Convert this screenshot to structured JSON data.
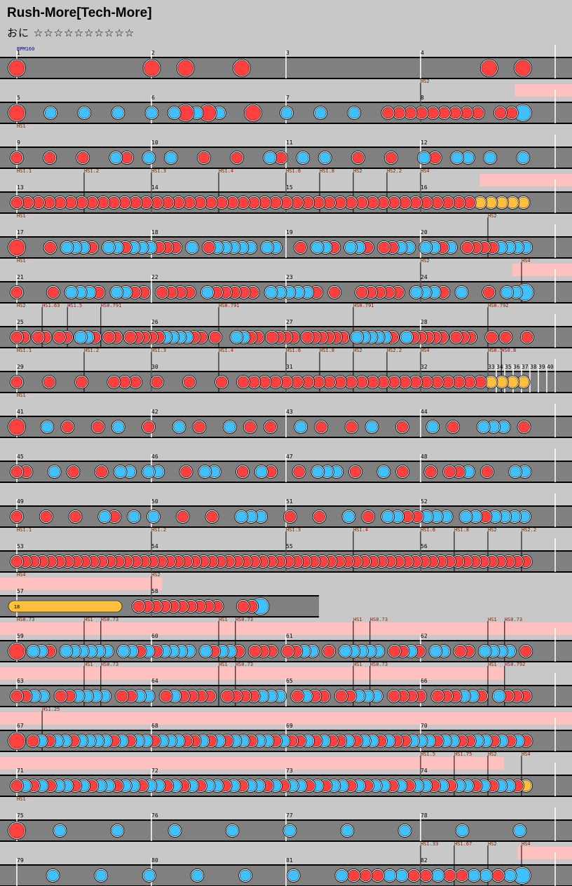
{
  "title": "Rush-More[Tech-More]",
  "subtitle": "おに ☆☆☆☆☆☆☆☆☆☆",
  "colors": {
    "background": "#c8c8c8",
    "lane": "#808080",
    "lane_border": "#000000",
    "don": "#ff4040",
    "ka": "#40c0ff",
    "roll": "#ffc040",
    "gogo_band": "#ffc0c0",
    "measure_text": "#000000",
    "event_text": "#cc0000",
    "bpm_text": "#0000cc"
  },
  "rows": [
    {
      "bpm": "BPM160",
      "m": [
        "1",
        "2",
        "3",
        "4"
      ],
      "ev": [],
      "notes": "D...........D..D....D.....................D..D"
    },
    {
      "m": [
        "5",
        "6",
        "7",
        "8"
      ],
      "ev": [
        {
          "t": "HS2",
          "p": 0.75
        }
      ],
      "gogo": [
        0.925,
        1
      ],
      "notes": "D..k..k..k..k.kDkDk..D..k..k..k..ddddddddd.ddK"
    },
    {
      "ev": [
        {
          "t": "HS1",
          "p": 0
        }
      ],
      "m": [
        "9",
        "10",
        "11",
        "12"
      ],
      "notes": "d..d..d..kd.k.k..d..d..kd.k.k..d..d..kd.kk.k..k"
    },
    {
      "ev": [
        {
          "t": "HS1.1",
          "p": 0
        },
        {
          "t": "HS1.2",
          "p": 0.125
        },
        {
          "t": "HS1.3",
          "p": 0.25
        },
        {
          "t": "HS1.4",
          "p": 0.375
        },
        {
          "t": "HS1.6",
          "p": 0.5
        },
        {
          "t": "HS1.8",
          "p": 0.5625
        },
        {
          "t": "HS2",
          "p": 0.625
        },
        {
          "t": "HS2.2",
          "p": 0.6875
        },
        {
          "t": "HS4",
          "p": 0.75
        }
      ],
      "m": [
        "13",
        "14",
        "15",
        "16"
      ],
      "gogo": [
        0.86,
        1
      ],
      "notes": "dddddddddddddddddddddddddddddddddddddddddddrrrrr"
    },
    {
      "ev": [
        {
          "t": "HS1",
          "p": 0
        },
        {
          "t": "HS2",
          "p": 0.875
        }
      ],
      "m": [
        "17",
        "18",
        "19",
        "20"
      ],
      "notes": "D...d.kkkd.kkdkkkddd.k.dkkkkk.kk..d.kkd.kkd.ddkk.kkdk.ddddkkkk"
    },
    {
      "ev": [
        {
          "t": "HS1",
          "p": 0
        },
        {
          "t": "HS2",
          "p": 0.75
        },
        {
          "t": "HS4",
          "p": 0.9375
        }
      ],
      "m": [
        "21",
        "22",
        "23",
        "24"
      ],
      "gogo": [
        0.92,
        1
      ],
      "notes": "d...d.kkkd.kkdd.dddd.kddddd.kkkkkd.d..ddddd.kkkd.k..d.kkK"
    },
    {
      "ev": [
        {
          "t": "HS2",
          "p": 0
        },
        {
          "t": "HS1.63",
          "p": 0.047
        },
        {
          "t": "HS1.5",
          "p": 0.094
        },
        {
          "t": "HS0.791",
          "p": 0.156
        },
        {
          "t": "HS0.791",
          "p": 0.375
        },
        {
          "t": "HS0.791",
          "p": 0.625
        },
        {
          "t": "HS0.792",
          "p": 0.875
        }
      ],
      "m": [
        "25",
        "26",
        "27",
        "28"
      ],
      "notes": "dd.dd.dd.kkd.dd.dddddkkkkdd.d..kkdd.dddd.dddddd.kkkkkd.kddddd.ddd..d.d..d"
    },
    {
      "ev": [
        {
          "t": "HS1.1",
          "p": 0
        },
        {
          "t": "HS1.2",
          "p": 0.125
        },
        {
          "t": "HS1.3",
          "p": 0.25
        },
        {
          "t": "HS1.4",
          "p": 0.375
        },
        {
          "t": "HS1.6",
          "p": 0.5
        },
        {
          "t": "HS1.8",
          "p": 0.5625
        },
        {
          "t": "HS2",
          "p": 0.625
        },
        {
          "t": "HS2.2",
          "p": 0.6875
        },
        {
          "t": "HS4",
          "p": 0.75
        },
        {
          "t": "HS0.5",
          "p": 0.875
        },
        {
          "t": "HS0.8",
          "p": 0.9
        }
      ],
      "m": [
        "29",
        "30",
        "31",
        "32",
        "33",
        "34",
        "35",
        "36",
        "37",
        "38",
        "39",
        "40"
      ],
      "notes": "d..d..d..ddd.d..d..d.dddddddddddddddddddddddrrrr"
    },
    {
      "ev": [
        {
          "t": "HS1",
          "p": 0
        }
      ],
      "m": [
        "41",
        "42",
        "43",
        "44"
      ],
      "notes": "D..k.d..d.k..d..k.d..k.d.d..k.d..d.k..d..k.d..kkk.d"
    },
    {
      "m": [
        "45",
        "46",
        "47",
        "48"
      ],
      "notes": "dd..k.d..d.kk.kk..d.kk..d.kd..d.kkk.d..k.d..d.ddk.d..kk"
    },
    {
      "m": [
        "49",
        "50",
        "51",
        "52"
      ],
      "notes": "d..d..d..kd.k.k..d..d..kkk..d..d..k.d.kkddkkk.kkdkkkk"
    },
    {
      "ev": [
        {
          "t": "HS1.1",
          "p": 0
        },
        {
          "t": "HS1.2",
          "p": 0.25
        },
        {
          "t": "HS1.3",
          "p": 0.5
        },
        {
          "t": "HS1.4",
          "p": 0.625
        },
        {
          "t": "HS1.6",
          "p": 0.75
        },
        {
          "t": "HS1.8",
          "p": 0.8125
        },
        {
          "t": "HS2",
          "p": 0.875
        },
        {
          "t": "HS2.2",
          "p": 0.9375
        }
      ],
      "m": [
        "53",
        "54",
        "55",
        "56"
      ],
      "notes": "ddddddddddddddddddddddddddddddddddddddddddddddddddddddddddddd"
    },
    {
      "ev": [
        {
          "t": "HS4",
          "p": 0
        },
        {
          "t": "HS2",
          "p": 0.25
        }
      ],
      "m": [
        "57",
        "58"
      ],
      "short": true,
      "gogo": [
        0,
        0.27
      ],
      "roll": "18",
      "notes": "r.............dddddddddd..ddK"
    },
    {
      "ev": [
        {
          "t": "HS0.73",
          "p": 0
        },
        {
          "t": "HS1",
          "p": 0.125
        },
        {
          "t": "HS0.73",
          "p": 0.156
        },
        {
          "t": "HS1",
          "p": 0.375
        },
        {
          "t": "HS0.73",
          "p": 0.406
        },
        {
          "t": "HS1",
          "p": 0.625
        },
        {
          "t": "HS0.73",
          "p": 0.656
        },
        {
          "t": "HS1",
          "p": 0.875
        },
        {
          "t": "HS0.73",
          "p": 0.906
        }
      ],
      "m": [
        "59",
        "60",
        "61",
        "62"
      ],
      "gogo": [
        0,
        1
      ],
      "notes": "D.kkd.kkkkkk.kkdkdkkkk.kdkkd.ddd.ddkk.d.kkkkk.ddkd.kk.dd.kkkk.d"
    },
    {
      "ev": [
        {
          "t": "HS1",
          "p": 0.125
        },
        {
          "t": "HS0.73",
          "p": 0.156
        },
        {
          "t": "HS1",
          "p": 0.375
        },
        {
          "t": "HS0.73",
          "p": 0.406
        },
        {
          "t": "HS1",
          "p": 0.625
        },
        {
          "t": "HS0.73",
          "p": 0.656
        },
        {
          "t": "HS1",
          "p": 0.875
        },
        {
          "t": "HS0.792",
          "p": 0.906
        }
      ],
      "m": [
        "63",
        "64",
        "65",
        "66"
      ],
      "gogo": [
        0,
        0.905
      ],
      "notes": "ddkk.ddkkkk.ddkk.dkdddd.ddddkkk.dkdd.ddkkk.dddd.dddkkd.kddd"
    },
    {
      "ev": [
        {
          "t": "HS1.25",
          "p": 0.047
        }
      ],
      "m": [
        "67",
        "68",
        "69",
        "70"
      ],
      "gogo": [
        0,
        1
      ],
      "notes": "D.dkdkkdkkkkdkdkkdkkkddkdkdkkdkkdkddkdkddkdkkdkddkkkdkkddkkdkdkd"
    },
    {
      "ev": [
        {
          "t": "HS1.5",
          "p": 0.75
        },
        {
          "t": "HS1.75",
          "p": 0.8125
        },
        {
          "t": "HS2",
          "p": 0.875
        },
        {
          "t": "HS4",
          "p": 0.9375
        }
      ],
      "m": [
        "71",
        "72",
        "73",
        "74"
      ],
      "gogo": [
        0,
        0.905
      ],
      "notes": "dkdkdkkdkdkkdkkdkkdkdkdkkdkdkkdkdkkdkdkkdkdkkdkdkkdkdkkdkdkkdr"
    },
    {
      "ev": [
        {
          "t": "HS1",
          "p": 0
        }
      ],
      "m": [
        "75",
        "76",
        "77",
        "78"
      ],
      "notes": "D..k...k...k...k...k...k...k...k...k"
    },
    {
      "ev": [
        {
          "t": "HS1.33",
          "p": 0.75
        },
        {
          "t": "HS1.67",
          "p": 0.8125
        },
        {
          "t": "HS2",
          "p": 0.875
        },
        {
          "t": "HS4",
          "p": 0.9375
        }
      ],
      "m": [
        "79",
        "80",
        "81",
        "82"
      ],
      "gogo": [
        0.93,
        1
      ],
      "notes": "...k...k...k...k...k...k...kdddkkddkddkkdkK"
    }
  ]
}
